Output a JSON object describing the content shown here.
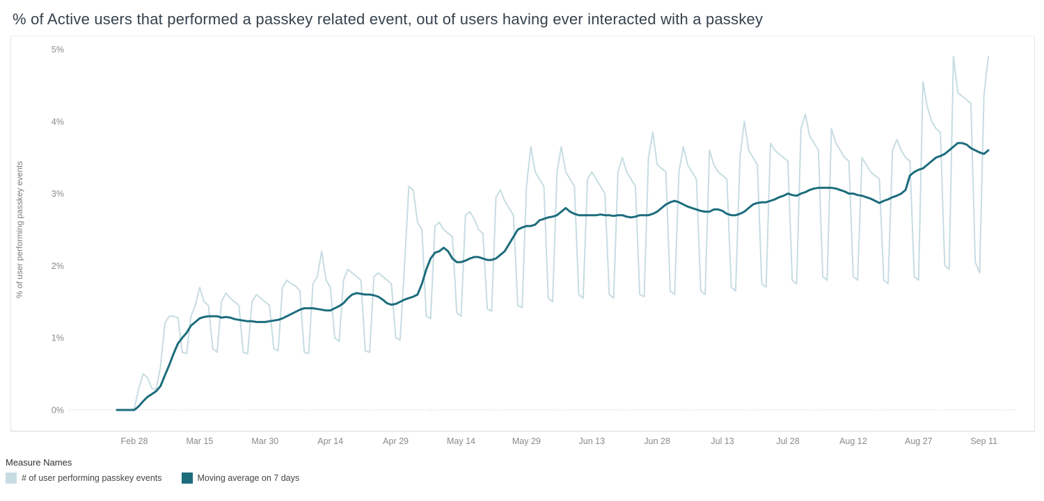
{
  "legend": {
    "title": "Measure Names"
  },
  "chart_data": {
    "type": "line",
    "title": "% of Active users that performed a passkey related event, out of users having ever interacted with a passkey",
    "xlabel": "",
    "ylabel": "% of user performing passkey events",
    "ylim": [
      0,
      5
    ],
    "y_unit": "%",
    "grid": "zero-line-dotted-only",
    "legend_position": "bottom-left",
    "x_frequency": "daily",
    "x_range_start": "Feb 24",
    "x_range_end": "Sep 12",
    "y_tick_values": [
      0,
      1,
      2,
      3,
      4,
      5
    ],
    "y_tick_labels": [
      "0%",
      "1%",
      "2%",
      "3%",
      "4%",
      "5%"
    ],
    "x_tick_indices": [
      4,
      19,
      34,
      49,
      64,
      79,
      94,
      109,
      124,
      139,
      154,
      169,
      184,
      199
    ],
    "x_tick_labels": [
      "Feb 28",
      "Mar 15",
      "Mar 30",
      "Apr 14",
      "Apr 29",
      "May 14",
      "May 29",
      "Jun 13",
      "Jun 28",
      "Jul 13",
      "Jul 28",
      "Aug 12",
      "Aug 27",
      "Sep 11"
    ],
    "series": [
      {
        "name": "# of user performing passkey events",
        "color": "#c7dce2",
        "values": [
          0,
          0,
          0,
          0,
          0.02,
          0.3,
          0.5,
          0.45,
          0.3,
          0.28,
          0.6,
          1.2,
          1.3,
          1.3,
          1.28,
          0.8,
          0.78,
          1.3,
          1.45,
          1.7,
          1.5,
          1.45,
          0.85,
          0.8,
          1.5,
          1.62,
          1.55,
          1.5,
          1.45,
          0.8,
          0.78,
          1.5,
          1.6,
          1.55,
          1.5,
          1.45,
          0.85,
          0.82,
          1.7,
          1.8,
          1.75,
          1.72,
          1.65,
          0.8,
          0.78,
          1.75,
          1.85,
          2.2,
          1.8,
          1.7,
          1.0,
          0.95,
          1.8,
          1.95,
          1.9,
          1.85,
          1.8,
          0.82,
          0.8,
          1.85,
          1.9,
          1.85,
          1.8,
          1.75,
          1.0,
          0.97,
          2.0,
          3.1,
          3.05,
          2.6,
          2.5,
          1.3,
          1.27,
          2.55,
          2.6,
          2.5,
          2.45,
          2.4,
          1.35,
          1.3,
          2.7,
          2.75,
          2.65,
          2.5,
          2.45,
          1.4,
          1.37,
          2.95,
          3.05,
          2.9,
          2.8,
          2.7,
          1.45,
          1.42,
          3.1,
          3.65,
          3.3,
          3.2,
          3.1,
          1.55,
          1.5,
          3.3,
          3.65,
          3.3,
          3.2,
          3.1,
          1.6,
          1.55,
          3.2,
          3.3,
          3.2,
          3.1,
          3.0,
          1.6,
          1.55,
          3.3,
          3.5,
          3.3,
          3.2,
          3.1,
          1.6,
          1.57,
          3.5,
          3.85,
          3.4,
          3.35,
          3.3,
          1.65,
          1.6,
          3.3,
          3.65,
          3.4,
          3.3,
          3.2,
          1.65,
          1.6,
          3.6,
          3.4,
          3.3,
          3.25,
          3.2,
          1.7,
          1.65,
          3.5,
          4.0,
          3.6,
          3.5,
          3.4,
          1.75,
          1.7,
          3.7,
          3.6,
          3.55,
          3.5,
          3.45,
          1.8,
          1.75,
          3.9,
          4.1,
          3.8,
          3.7,
          3.6,
          1.85,
          1.8,
          3.9,
          3.7,
          3.6,
          3.5,
          3.45,
          1.85,
          1.8,
          3.5,
          3.4,
          3.3,
          3.25,
          3.2,
          1.8,
          1.75,
          3.6,
          3.75,
          3.6,
          3.5,
          3.45,
          1.85,
          1.8,
          4.55,
          4.2,
          4.0,
          3.9,
          3.85,
          2.0,
          1.95,
          4.9,
          4.4,
          4.35,
          4.3,
          4.25,
          2.05,
          1.9,
          4.35,
          4.9
        ]
      },
      {
        "name": "Moving average on 7 days",
        "color": "#1c6c7c",
        "values": [
          0,
          0,
          0,
          0,
          0,
          0.05,
          0.12,
          0.18,
          0.22,
          0.26,
          0.33,
          0.48,
          0.62,
          0.78,
          0.92,
          1.0,
          1.07,
          1.17,
          1.22,
          1.27,
          1.29,
          1.3,
          1.3,
          1.3,
          1.28,
          1.29,
          1.28,
          1.26,
          1.25,
          1.24,
          1.23,
          1.23,
          1.22,
          1.22,
          1.22,
          1.23,
          1.24,
          1.25,
          1.27,
          1.3,
          1.33,
          1.36,
          1.39,
          1.41,
          1.41,
          1.41,
          1.4,
          1.39,
          1.38,
          1.38,
          1.41,
          1.44,
          1.48,
          1.55,
          1.6,
          1.62,
          1.61,
          1.6,
          1.6,
          1.59,
          1.57,
          1.53,
          1.48,
          1.46,
          1.47,
          1.5,
          1.53,
          1.55,
          1.57,
          1.6,
          1.75,
          1.95,
          2.1,
          2.18,
          2.2,
          2.25,
          2.2,
          2.1,
          2.05,
          2.05,
          2.07,
          2.1,
          2.12,
          2.12,
          2.1,
          2.08,
          2.08,
          2.1,
          2.15,
          2.2,
          2.3,
          2.4,
          2.5,
          2.53,
          2.55,
          2.55,
          2.57,
          2.63,
          2.65,
          2.67,
          2.68,
          2.7,
          2.75,
          2.8,
          2.75,
          2.72,
          2.7,
          2.7,
          2.7,
          2.7,
          2.7,
          2.71,
          2.7,
          2.7,
          2.69,
          2.7,
          2.7,
          2.68,
          2.67,
          2.68,
          2.7,
          2.7,
          2.7,
          2.72,
          2.75,
          2.8,
          2.85,
          2.88,
          2.9,
          2.88,
          2.85,
          2.82,
          2.8,
          2.78,
          2.76,
          2.75,
          2.75,
          2.78,
          2.78,
          2.76,
          2.72,
          2.7,
          2.7,
          2.72,
          2.75,
          2.8,
          2.85,
          2.87,
          2.88,
          2.88,
          2.9,
          2.92,
          2.95,
          2.97,
          3.0,
          2.98,
          2.97,
          3.0,
          3.02,
          3.05,
          3.07,
          3.08,
          3.08,
          3.08,
          3.08,
          3.07,
          3.05,
          3.03,
          3.0,
          3.0,
          2.98,
          2.97,
          2.95,
          2.93,
          2.9,
          2.87,
          2.9,
          2.92,
          2.95,
          2.97,
          3.0,
          3.05,
          3.25,
          3.3,
          3.33,
          3.35,
          3.4,
          3.45,
          3.5,
          3.52,
          3.55,
          3.6,
          3.65,
          3.7,
          3.7,
          3.68,
          3.63,
          3.6,
          3.57,
          3.55,
          3.6
        ]
      }
    ]
  }
}
